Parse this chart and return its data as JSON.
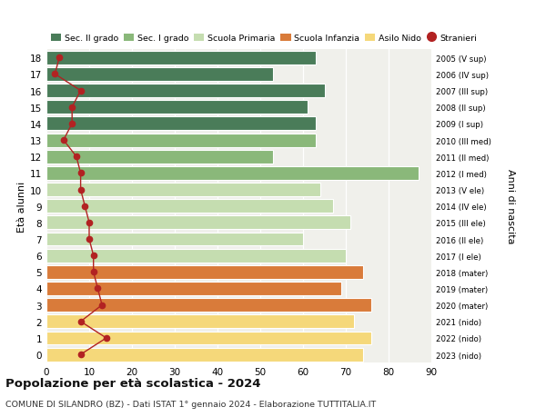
{
  "ages": [
    18,
    17,
    16,
    15,
    14,
    13,
    12,
    11,
    10,
    9,
    8,
    7,
    6,
    5,
    4,
    3,
    2,
    1,
    0
  ],
  "right_labels": [
    "2005 (V sup)",
    "2006 (IV sup)",
    "2007 (III sup)",
    "2008 (II sup)",
    "2009 (I sup)",
    "2010 (III med)",
    "2011 (II med)",
    "2012 (I med)",
    "2013 (V ele)",
    "2014 (IV ele)",
    "2015 (III ele)",
    "2016 (II ele)",
    "2017 (I ele)",
    "2018 (mater)",
    "2019 (mater)",
    "2020 (mater)",
    "2021 (nido)",
    "2022 (nido)",
    "2023 (nido)"
  ],
  "bar_values": [
    63,
    53,
    65,
    61,
    63,
    63,
    53,
    87,
    64,
    67,
    71,
    60,
    70,
    74,
    69,
    76,
    72,
    76,
    74
  ],
  "bar_colors": [
    "#4a7c59",
    "#4a7c59",
    "#4a7c59",
    "#4a7c59",
    "#4a7c59",
    "#8ab87a",
    "#8ab87a",
    "#8ab87a",
    "#c5ddb0",
    "#c5ddb0",
    "#c5ddb0",
    "#c5ddb0",
    "#c5ddb0",
    "#d97b3a",
    "#d97b3a",
    "#d97b3a",
    "#f5d87a",
    "#f5d87a",
    "#f5d87a"
  ],
  "stranieri_values": [
    3,
    2,
    8,
    6,
    6,
    4,
    7,
    8,
    8,
    9,
    10,
    10,
    11,
    11,
    12,
    13,
    8,
    14,
    8
  ],
  "stranieri_color": "#b22222",
  "legend_items": [
    {
      "label": "Sec. II grado",
      "color": "#4a7c59",
      "type": "patch"
    },
    {
      "label": "Sec. I grado",
      "color": "#8ab87a",
      "type": "patch"
    },
    {
      "label": "Scuola Primaria",
      "color": "#c5ddb0",
      "type": "patch"
    },
    {
      "label": "Scuola Infanzia",
      "color": "#d97b3a",
      "type": "patch"
    },
    {
      "label": "Asilo Nido",
      "color": "#f5d87a",
      "type": "patch"
    },
    {
      "label": "Stranieri",
      "color": "#b22222",
      "type": "marker"
    }
  ],
  "ylabel_left": "Età alunni",
  "ylabel_right": "Anni di nascita",
  "xlim": [
    0,
    90
  ],
  "xticks": [
    0,
    10,
    20,
    30,
    40,
    50,
    60,
    70,
    80,
    90
  ],
  "ylim": [
    -0.5,
    18.5
  ],
  "title": "Popolazione per età scolastica - 2024",
  "subtitle": "COMUNE DI SILANDRO (BZ) - Dati ISTAT 1° gennaio 2024 - Elaborazione TUTTITALIA.IT",
  "background_color": "#ffffff",
  "plot_bg_color": "#f0f0eb"
}
